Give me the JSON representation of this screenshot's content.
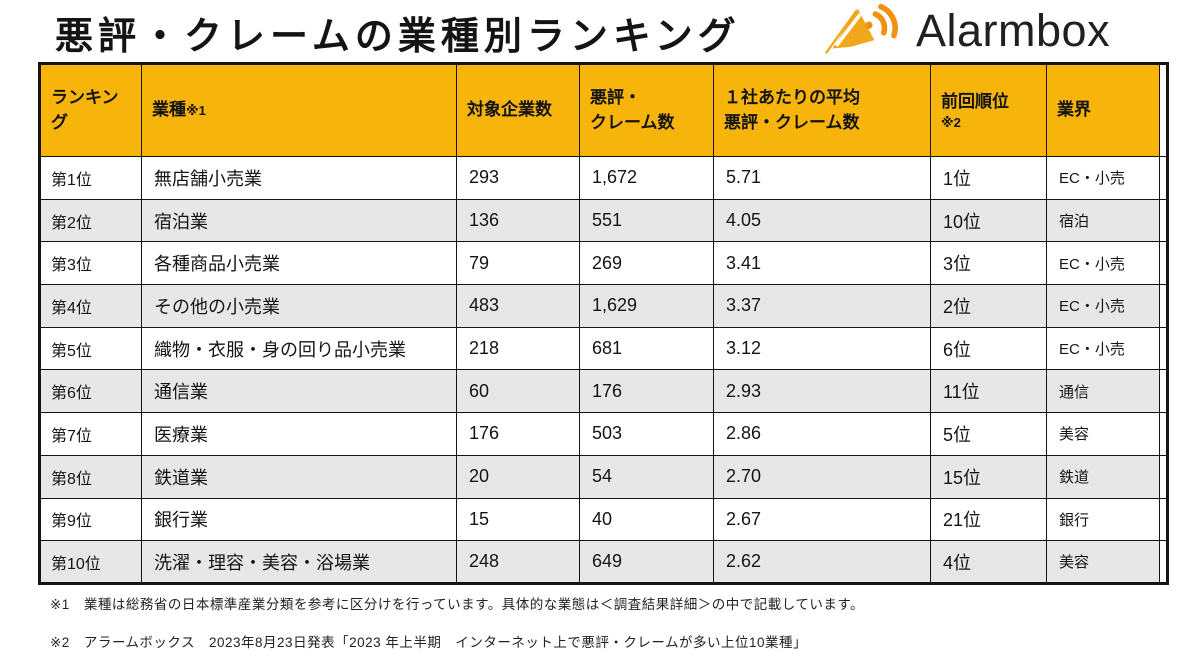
{
  "page_title": "悪評・クレームの業種別ランキング",
  "logo": {
    "text": "Alarmbox",
    "icon": "alarmbox-logo-icon"
  },
  "colors": {
    "header_bg": "#F7B50C",
    "stripe_bg": "#E7E7E7",
    "border": "#141414",
    "logo_orange": "#F29111",
    "logo_gold": "#F2A71B"
  },
  "table": {
    "columns": [
      {
        "label": "ランキング",
        "note": ""
      },
      {
        "label": "業種",
        "note": "※1"
      },
      {
        "label": "対象企業数",
        "note": ""
      },
      {
        "label": "悪評・\nクレーム数",
        "note": ""
      },
      {
        "label": "１社あたりの平均\n悪評・クレーム数",
        "note": ""
      },
      {
        "label": "前回順位",
        "note": "※2"
      },
      {
        "label": "業界",
        "note": ""
      }
    ],
    "rows": [
      {
        "rank": "第1位",
        "industry": "無店舗小売業",
        "companies": "293",
        "complaints": "1,672",
        "avg": "5.71",
        "prev": "1位",
        "sector": "EC・小売"
      },
      {
        "rank": "第2位",
        "industry": "宿泊業",
        "companies": "136",
        "complaints": "551",
        "avg": "4.05",
        "prev": "10位",
        "sector": "宿泊"
      },
      {
        "rank": "第3位",
        "industry": "各種商品小売業",
        "companies": "79",
        "complaints": "269",
        "avg": "3.41",
        "prev": "3位",
        "sector": "EC・小売"
      },
      {
        "rank": "第4位",
        "industry": "その他の小売業",
        "companies": "483",
        "complaints": "1,629",
        "avg": "3.37",
        "prev": "2位",
        "sector": "EC・小売"
      },
      {
        "rank": "第5位",
        "industry": "織物・衣服・身の回り品小売業",
        "companies": "218",
        "complaints": "681",
        "avg": "3.12",
        "prev": "6位",
        "sector": "EC・小売"
      },
      {
        "rank": "第6位",
        "industry": "通信業",
        "companies": "60",
        "complaints": "176",
        "avg": "2.93",
        "prev": "11位",
        "sector": "通信"
      },
      {
        "rank": "第7位",
        "industry": "医療業",
        "companies": "176",
        "complaints": "503",
        "avg": "2.86",
        "prev": "5位",
        "sector": "美容"
      },
      {
        "rank": "第8位",
        "industry": "鉄道業",
        "companies": "20",
        "complaints": "54",
        "avg": "2.70",
        "prev": "15位",
        "sector": "鉄道"
      },
      {
        "rank": "第9位",
        "industry": "銀行業",
        "companies": "15",
        "complaints": "40",
        "avg": "2.67",
        "prev": "21位",
        "sector": "銀行"
      },
      {
        "rank": "第10位",
        "industry": "洗濯・理容・美容・浴場業",
        "companies": "248",
        "complaints": "649",
        "avg": "2.62",
        "prev": "4位",
        "sector": "美容"
      }
    ]
  },
  "footnotes": [
    "※1　業種は総務省の日本標準産業分類を参考に区分けを行っています。具体的な業態は＜調査結果詳細＞の中で記載しています。",
    "※2　アラームボックス　2023年8月23日発表「2023 年上半期　インターネット上で悪評・クレームが多い上位10業種」"
  ],
  "chart_data": {
    "type": "table",
    "title": "悪評・クレームの業種別ランキング",
    "columns": [
      "ランキング",
      "業種",
      "対象企業数",
      "悪評・クレーム数",
      "1社あたりの平均悪評・クレーム数",
      "前回順位",
      "業界"
    ],
    "rows": [
      [
        "第1位",
        "無店舗小売業",
        293,
        1672,
        5.71,
        "1位",
        "EC・小売"
      ],
      [
        "第2位",
        "宿泊業",
        136,
        551,
        4.05,
        "10位",
        "宿泊"
      ],
      [
        "第3位",
        "各種商品小売業",
        79,
        269,
        3.41,
        "3位",
        "EC・小売"
      ],
      [
        "第4位",
        "その他の小売業",
        483,
        1629,
        3.37,
        "2位",
        "EC・小売"
      ],
      [
        "第5位",
        "織物・衣服・身の回り品小売業",
        218,
        681,
        3.12,
        "6位",
        "EC・小売"
      ],
      [
        "第6位",
        "通信業",
        60,
        176,
        2.93,
        "11位",
        "通信"
      ],
      [
        "第7位",
        "医療業",
        176,
        503,
        2.86,
        "5位",
        "美容"
      ],
      [
        "第8位",
        "鉄道業",
        20,
        54,
        2.7,
        "15位",
        "鉄道"
      ],
      [
        "第9位",
        "銀行業",
        15,
        40,
        2.67,
        "21位",
        "銀行"
      ],
      [
        "第10位",
        "洗濯・理容・美容・浴場業",
        248,
        649,
        2.62,
        "4位",
        "美容"
      ]
    ]
  }
}
